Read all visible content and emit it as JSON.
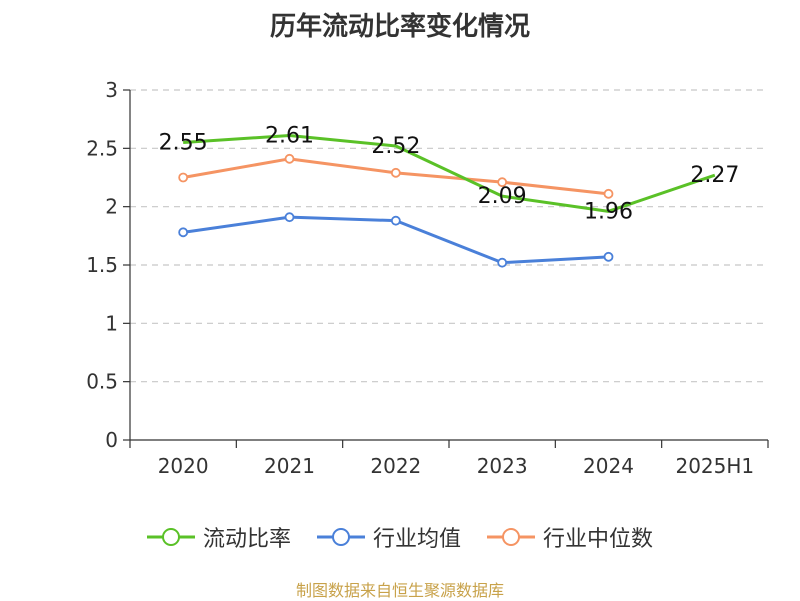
{
  "title": "历年流动比率变化情况",
  "source": "制图数据来自恒生聚源数据库",
  "chart_data": {
    "type": "line",
    "categories": [
      "2020",
      "2021",
      "2022",
      "2023",
      "2024",
      "2025H1"
    ],
    "ylim": [
      0,
      3
    ],
    "yticks": [
      "0",
      "0.5",
      "1",
      "1.5",
      "2",
      "2.5",
      "3"
    ],
    "grid": true,
    "legend_position": "bottom",
    "series": [
      {
        "name": "流动比率",
        "values": [
          2.55,
          2.61,
          2.52,
          2.09,
          1.96,
          2.27
        ],
        "labels": [
          "2.55",
          "2.61",
          "2.52",
          "2.09",
          "1.96",
          "2.27"
        ],
        "color": "#5ac127"
      },
      {
        "name": "行业均值",
        "values": [
          1.78,
          1.91,
          1.88,
          1.52,
          1.57,
          null
        ],
        "color": "#4a80d9"
      },
      {
        "name": "行业中位数",
        "values": [
          2.25,
          2.41,
          2.29,
          2.21,
          2.11,
          null
        ],
        "color": "#f59463"
      }
    ]
  }
}
